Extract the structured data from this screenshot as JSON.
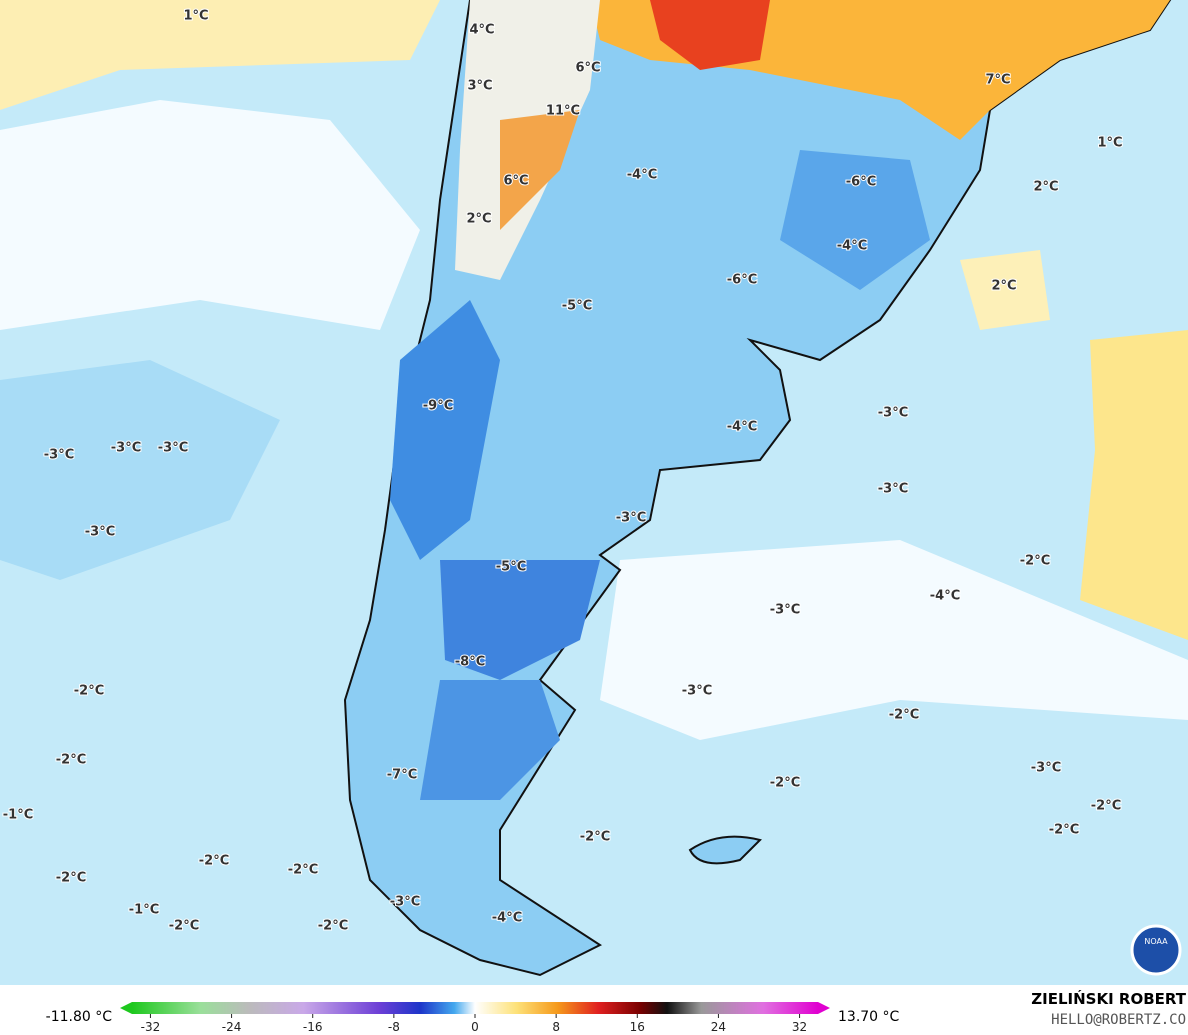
{
  "map_labels": [
    "1°C",
    "4°C",
    "3°C",
    "6°C",
    "11°C",
    "6°C",
    "2°C",
    "-4°C",
    "-6°C",
    "-4°C",
    "-6°C",
    "-5°C",
    "7°C",
    "1°C",
    "2°C",
    "2°C",
    "-9°C",
    "-4°C",
    "-3°C",
    "-3°C",
    "-3°C",
    "-3°C",
    "-3°C",
    "-3°C",
    "-3°C",
    "-5°C",
    "-2°C",
    "-4°C",
    "-3°C",
    "-8°C",
    "-2°C",
    "-3°C",
    "-2°C",
    "-2°C",
    "-7°C",
    "-2°C",
    "-3°C",
    "-2°C",
    "-1°C",
    "-2°C",
    "-2°C",
    "-2°C",
    "-2°C",
    "-2°C",
    "-1°C",
    "-2°C",
    "-2°C",
    "-3°C",
    "-4°C"
  ],
  "logo": "NOAA",
  "colorbar": {
    "min_label": "-11.80 °C",
    "max_label": "13.70 °C",
    "lim": [
      -35,
      35
    ],
    "ticks": [
      -32,
      -24,
      -16,
      -8,
      0,
      8,
      16,
      24,
      32
    ]
  },
  "credits": {
    "name": "ZIELIŃSKI ROBERT",
    "email": "HELLO@ROBERTZ.CO"
  }
}
